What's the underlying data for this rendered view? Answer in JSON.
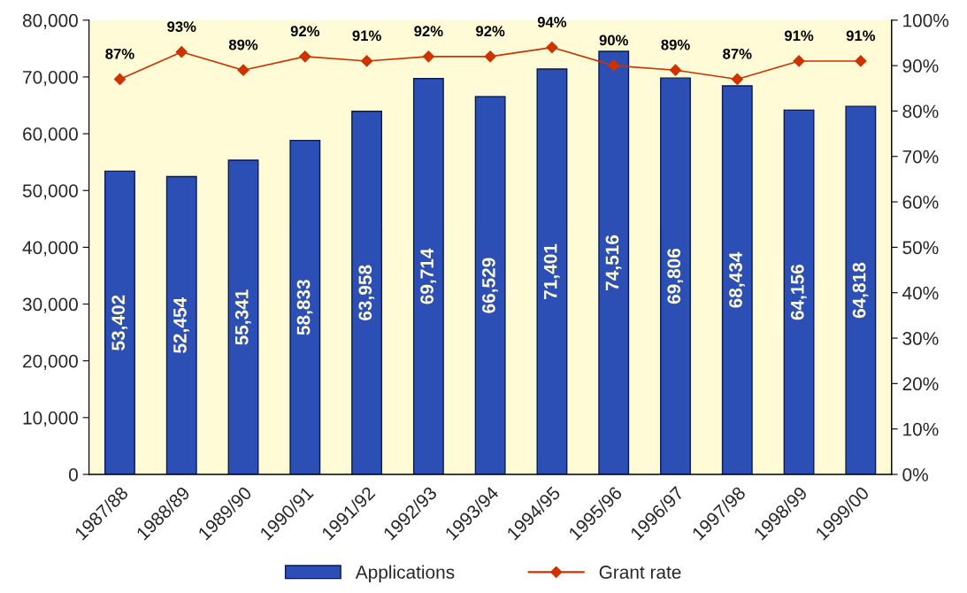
{
  "chart_data": {
    "type": "bar",
    "categories": [
      "1987/88",
      "1988/89",
      "1989/90",
      "1990/91",
      "1991/92",
      "1992/93",
      "1993/94",
      "1994/95",
      "1995/96",
      "1996/97",
      "1997/98",
      "1998/99",
      "1999/00"
    ],
    "series": [
      {
        "name": "Applications",
        "color": "#2b4fb4",
        "values": [
          53402,
          52454,
          55341,
          58833,
          63958,
          69714,
          66529,
          71401,
          74516,
          69806,
          68434,
          64156,
          64818
        ],
        "value_labels": [
          "53,402",
          "52,454",
          "55,341",
          "58,833",
          "63,958",
          "69,714",
          "66,529",
          "71,401",
          "74,516",
          "69,806",
          "68,434",
          "64,156",
          "64,818"
        ]
      },
      {
        "name": "Grant rate",
        "type": "line",
        "axis": "y2",
        "color": "#cc3300",
        "marker": "diamond",
        "values": [
          87,
          93,
          89,
          92,
          91,
          92,
          92,
          94,
          90,
          89,
          87,
          91,
          91
        ],
        "value_labels": [
          "87%",
          "93%",
          "89%",
          "92%",
          "91%",
          "92%",
          "92%",
          "94%",
          "90%",
          "89%",
          "87%",
          "91%",
          "91%"
        ]
      }
    ],
    "ylim": [
      0,
      80000
    ],
    "yticks": [
      0,
      {
        "value": 10000,
        "label": "10,000"
      },
      {
        "value": 20000,
        "label": "20,000"
      },
      {
        "value": 30000,
        "label": "30,000"
      },
      {
        "value": 40000,
        "label": "40,000"
      },
      {
        "value": 50000,
        "label": "50,000"
      },
      {
        "value": 60000,
        "label": "60,000"
      },
      {
        "value": 70000,
        "label": "70,000"
      },
      {
        "value": 80000,
        "label": "80,000"
      }
    ],
    "y2lim": [
      0,
      100
    ],
    "y2ticks": [
      {
        "value": 0,
        "label": "0%"
      },
      {
        "value": 10,
        "label": "10%"
      },
      {
        "value": 20,
        "label": "20%"
      },
      {
        "value": 30,
        "label": "30%"
      },
      {
        "value": 40,
        "label": "40%"
      },
      {
        "value": 50,
        "label": "50%"
      },
      {
        "value": 60,
        "label": "60%"
      },
      {
        "value": 70,
        "label": "70%"
      },
      {
        "value": 80,
        "label": "80%"
      },
      {
        "value": 90,
        "label": "90%"
      },
      {
        "value": 100,
        "label": "100%"
      }
    ],
    "grid": false,
    "legend": "bottom"
  }
}
